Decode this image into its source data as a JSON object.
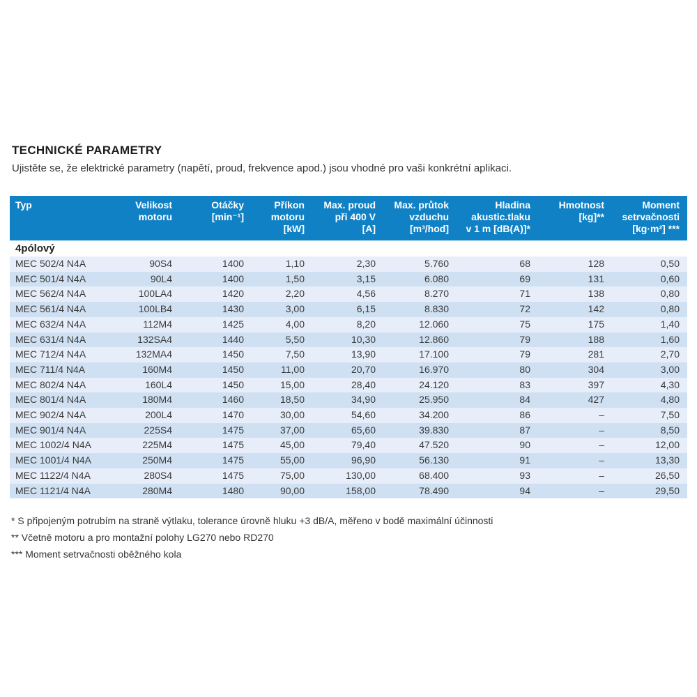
{
  "page": {
    "title": "TECHNICKÉ PARAMETRY",
    "subtitle": "Ujistěte se, že elektrické parametry (napětí, proud, frekvence apod.) jsou vhodné pro vaši konkrétní aplikaci."
  },
  "table": {
    "colors": {
      "header_bg": "#1181c6",
      "header_text": "#ffffff",
      "row_light": "#e7eefa",
      "row_dark": "#cfe0f2",
      "body_text": "#3a3a3a"
    },
    "columns": [
      "Typ",
      "Velikost\nmotoru",
      "Otáčky\n[min⁻¹]",
      "Příkon\nmotoru\n[kW]",
      "Max. proud\npři 400 V\n[A]",
      "Max. průtok\nvzduchu\n[m³/hod]",
      "Hladina\nakustic.tlaku\nv 1 m [dB(A)]*",
      "Hmotnost\n[kg]**",
      "Moment\nsetrvačnosti\n[kg·m²] ***"
    ],
    "section_label": "4pólový",
    "rows": [
      [
        "MEC 502/4 N4A",
        "90S4",
        "1400",
        "1,10",
        "2,30",
        "5.760",
        "68",
        "128",
        "0,50"
      ],
      [
        "MEC 501/4 N4A",
        "90L4",
        "1400",
        "1,50",
        "3,15",
        "6.080",
        "69",
        "131",
        "0,60"
      ],
      [
        "MEC 562/4 N4A",
        "100LA4",
        "1420",
        "2,20",
        "4,56",
        "8.270",
        "71",
        "138",
        "0,80"
      ],
      [
        "MEC 561/4 N4A",
        "100LB4",
        "1430",
        "3,00",
        "6,15",
        "8.830",
        "72",
        "142",
        "0,80"
      ],
      [
        "MEC 632/4 N4A",
        "112M4",
        "1425",
        "4,00",
        "8,20",
        "12.060",
        "75",
        "175",
        "1,40"
      ],
      [
        "MEC 631/4 N4A",
        "132SA4",
        "1440",
        "5,50",
        "10,30",
        "12.860",
        "79",
        "188",
        "1,60"
      ],
      [
        "MEC 712/4 N4A",
        "132MA4",
        "1450",
        "7,50",
        "13,90",
        "17.100",
        "79",
        "281",
        "2,70"
      ],
      [
        "MEC 711/4 N4A",
        "160M4",
        "1450",
        "11,00",
        "20,70",
        "16.970",
        "80",
        "304",
        "3,00"
      ],
      [
        "MEC 802/4 N4A",
        "160L4",
        "1450",
        "15,00",
        "28,40",
        "24.120",
        "83",
        "397",
        "4,30"
      ],
      [
        "MEC 801/4 N4A",
        "180M4",
        "1460",
        "18,50",
        "34,90",
        "25.950",
        "84",
        "427",
        "4,80"
      ],
      [
        "MEC 902/4 N4A",
        "200L4",
        "1470",
        "30,00",
        "54,60",
        "34.200",
        "86",
        "–",
        "7,50"
      ],
      [
        "MEC 901/4 N4A",
        "225S4",
        "1475",
        "37,00",
        "65,60",
        "39.830",
        "87",
        "–",
        "8,50"
      ],
      [
        "MEC 1002/4 N4A",
        "225M4",
        "1475",
        "45,00",
        "79,40",
        "47.520",
        "90",
        "–",
        "12,00"
      ],
      [
        "MEC 1001/4 N4A",
        "250M4",
        "1475",
        "55,00",
        "96,90",
        "56.130",
        "91",
        "–",
        "13,30"
      ],
      [
        "MEC 1122/4 N4A",
        "280S4",
        "1475",
        "75,00",
        "130,00",
        "68.400",
        "93",
        "–",
        "26,50"
      ],
      [
        "MEC 1121/4 N4A",
        "280M4",
        "1480",
        "90,00",
        "158,00",
        "78.490",
        "94",
        "–",
        "29,50"
      ]
    ],
    "footnotes": [
      "* S připojeným potrubím na straně výtlaku, tolerance úrovně hluku +3 dB/A, měřeno v bodě maximální účinnosti",
      "** Včetně motoru a pro montažní polohy LG270 nebo RD270",
      "*** Moment setrvačnosti oběžného kola"
    ]
  }
}
